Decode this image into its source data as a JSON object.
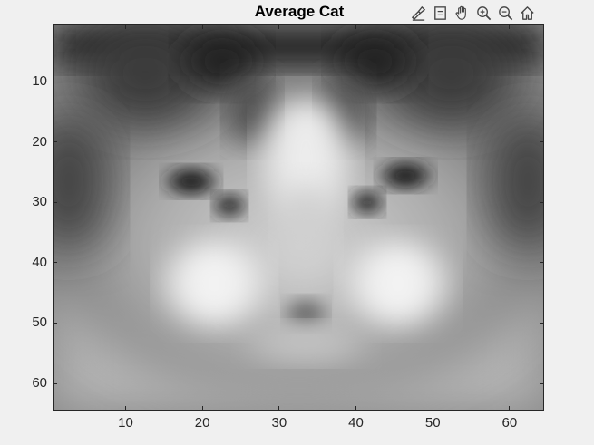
{
  "figure": {
    "title": "Average Cat"
  },
  "toolbar": {
    "items": [
      {
        "name": "brush-icon",
        "tooltip": "Brush"
      },
      {
        "name": "datatip-icon",
        "tooltip": "Data Tips"
      },
      {
        "name": "pan-hand-icon",
        "tooltip": "Pan"
      },
      {
        "name": "zoom-in-icon",
        "tooltip": "Zoom In"
      },
      {
        "name": "zoom-out-icon",
        "tooltip": "Zoom Out"
      },
      {
        "name": "home-icon",
        "tooltip": "Restore View"
      }
    ]
  },
  "axes": {
    "x_ticks": [
      "10",
      "20",
      "30",
      "40",
      "50",
      "60"
    ],
    "y_ticks": [
      "10",
      "20",
      "30",
      "40",
      "50",
      "60"
    ],
    "x_tick_values": [
      10,
      20,
      30,
      40,
      50,
      60
    ],
    "y_tick_values": [
      10,
      20,
      30,
      40,
      50,
      60
    ],
    "xlim": [
      0.5,
      64.5
    ],
    "ylim": [
      0.5,
      64.5
    ],
    "colormap": "gray"
  },
  "image": {
    "description_id": "average-cat-grayscale-64x64",
    "rows": 64,
    "cols": 64
  }
}
